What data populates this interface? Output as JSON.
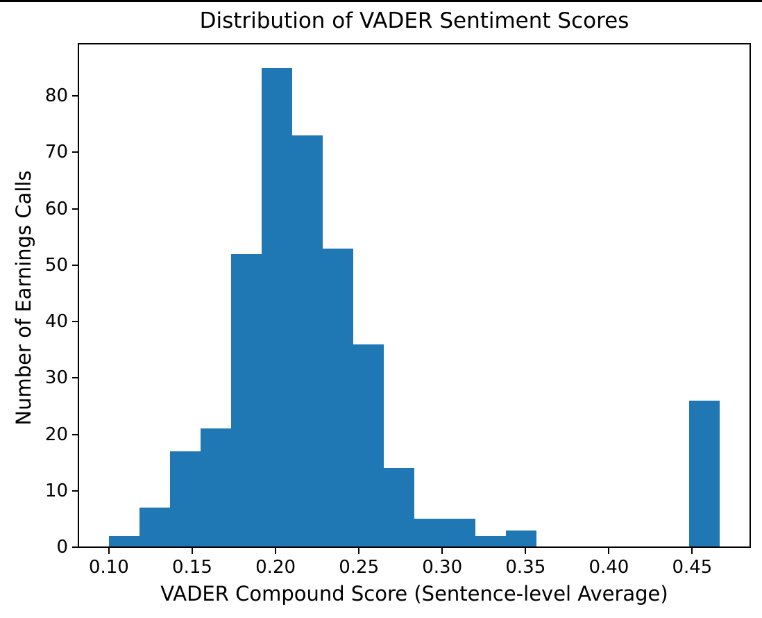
{
  "figure": {
    "background_color": "#ffffff",
    "top_border_color": "#000000"
  },
  "chart_data": {
    "type": "bar",
    "subtype": "histogram",
    "title": "Distribution of VADER Sentiment Scores",
    "xlabel": "VADER Compound Score (Sentence-level Average)",
    "ylabel": "Number of Earnings Calls",
    "bin_start": 0.1,
    "bin_width": 0.018325,
    "counts": [
      2,
      7,
      17,
      21,
      52,
      85,
      73,
      53,
      36,
      14,
      5,
      5,
      2,
      3,
      0,
      0,
      0,
      0,
      0,
      26
    ],
    "total_count": 401,
    "xlim": [
      0.0817,
      0.4848
    ],
    "ylim": [
      0,
      89.25
    ],
    "xticks": {
      "values": [
        0.1,
        0.15,
        0.2,
        0.25,
        0.3,
        0.35,
        0.4,
        0.45
      ],
      "labels": [
        "0.10",
        "0.15",
        "0.20",
        "0.25",
        "0.30",
        "0.35",
        "0.40",
        "0.45"
      ]
    },
    "yticks": {
      "values": [
        0,
        10,
        20,
        30,
        40,
        50,
        60,
        70,
        80
      ],
      "labels": [
        "0",
        "10",
        "20",
        "30",
        "40",
        "50",
        "60",
        "70",
        "80"
      ]
    },
    "bar_color": "#1f77b4",
    "axis_color": "#000000",
    "text_color": "#000000",
    "grid": false,
    "legend_position": "none"
  }
}
